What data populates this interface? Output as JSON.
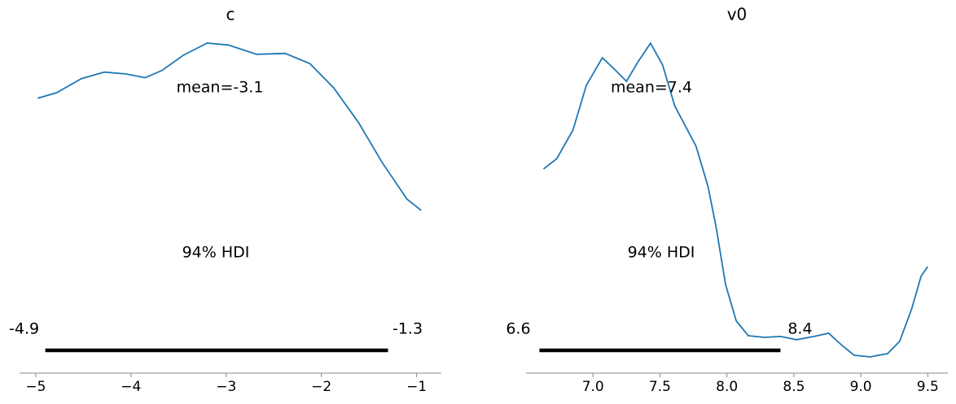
{
  "chart_data": [
    {
      "type": "line",
      "title": "c",
      "color": "#1f77b4",
      "x": [
        -4.98,
        -4.78,
        -4.52,
        -4.28,
        -4.05,
        -3.85,
        -3.67,
        -3.45,
        -3.2,
        -2.98,
        -2.68,
        -2.38,
        -2.12,
        -1.87,
        -1.61,
        -1.36,
        -1.1,
        -0.95
      ],
      "values": [
        0.27,
        0.276,
        0.291,
        0.298,
        0.296,
        0.292,
        0.3,
        0.316,
        0.329,
        0.327,
        0.317,
        0.318,
        0.307,
        0.281,
        0.244,
        0.201,
        0.162,
        0.15
      ],
      "mean_label": "mean=-3.1",
      "hdi_label": "94% HDI",
      "hdi": [
        -4.9,
        -1.3
      ],
      "xlim": [
        -5.17,
        -0.74
      ],
      "ylim": [
        -0.024,
        0.349
      ],
      "xticks": [
        {
          "value": -5,
          "label": "−5"
        },
        {
          "value": -4,
          "label": "−4"
        },
        {
          "value": -3,
          "label": "−3"
        },
        {
          "value": -2,
          "label": "−2"
        },
        {
          "value": -1,
          "label": "−1"
        }
      ]
    },
    {
      "type": "line",
      "title": "v0",
      "color": "#1f77b4",
      "x": [
        6.63,
        6.73,
        6.85,
        6.95,
        7.07,
        7.16,
        7.25,
        7.34,
        7.43,
        7.52,
        7.61,
        7.77,
        7.86,
        7.92,
        7.99,
        8.07,
        8.16,
        8.28,
        8.4,
        8.52,
        8.65,
        8.76,
        8.86,
        8.95,
        9.07,
        9.2,
        9.29,
        9.38,
        9.45,
        9.5
      ],
      "values": [
        0.83,
        0.875,
        0.998,
        1.19,
        1.309,
        1.26,
        1.208,
        1.295,
        1.372,
        1.278,
        1.103,
        0.928,
        0.753,
        0.578,
        0.333,
        0.175,
        0.112,
        0.105,
        0.109,
        0.095,
        0.109,
        0.123,
        0.07,
        0.028,
        0.021,
        0.035,
        0.088,
        0.228,
        0.368,
        0.41
      ],
      "mean_label": "mean=7.4",
      "hdi_label": "94% HDI",
      "hdi": [
        6.6,
        8.4
      ],
      "xlim": [
        6.5,
        9.65
      ],
      "ylim": [
        -0.049,
        1.453
      ],
      "xticks": [
        {
          "value": 7,
          "label": "7.0"
        },
        7.5,
        {
          "value": 8,
          "label": "8.0"
        },
        8.5,
        {
          "value": 9,
          "label": "9.0"
        },
        9.5
      ]
    }
  ]
}
